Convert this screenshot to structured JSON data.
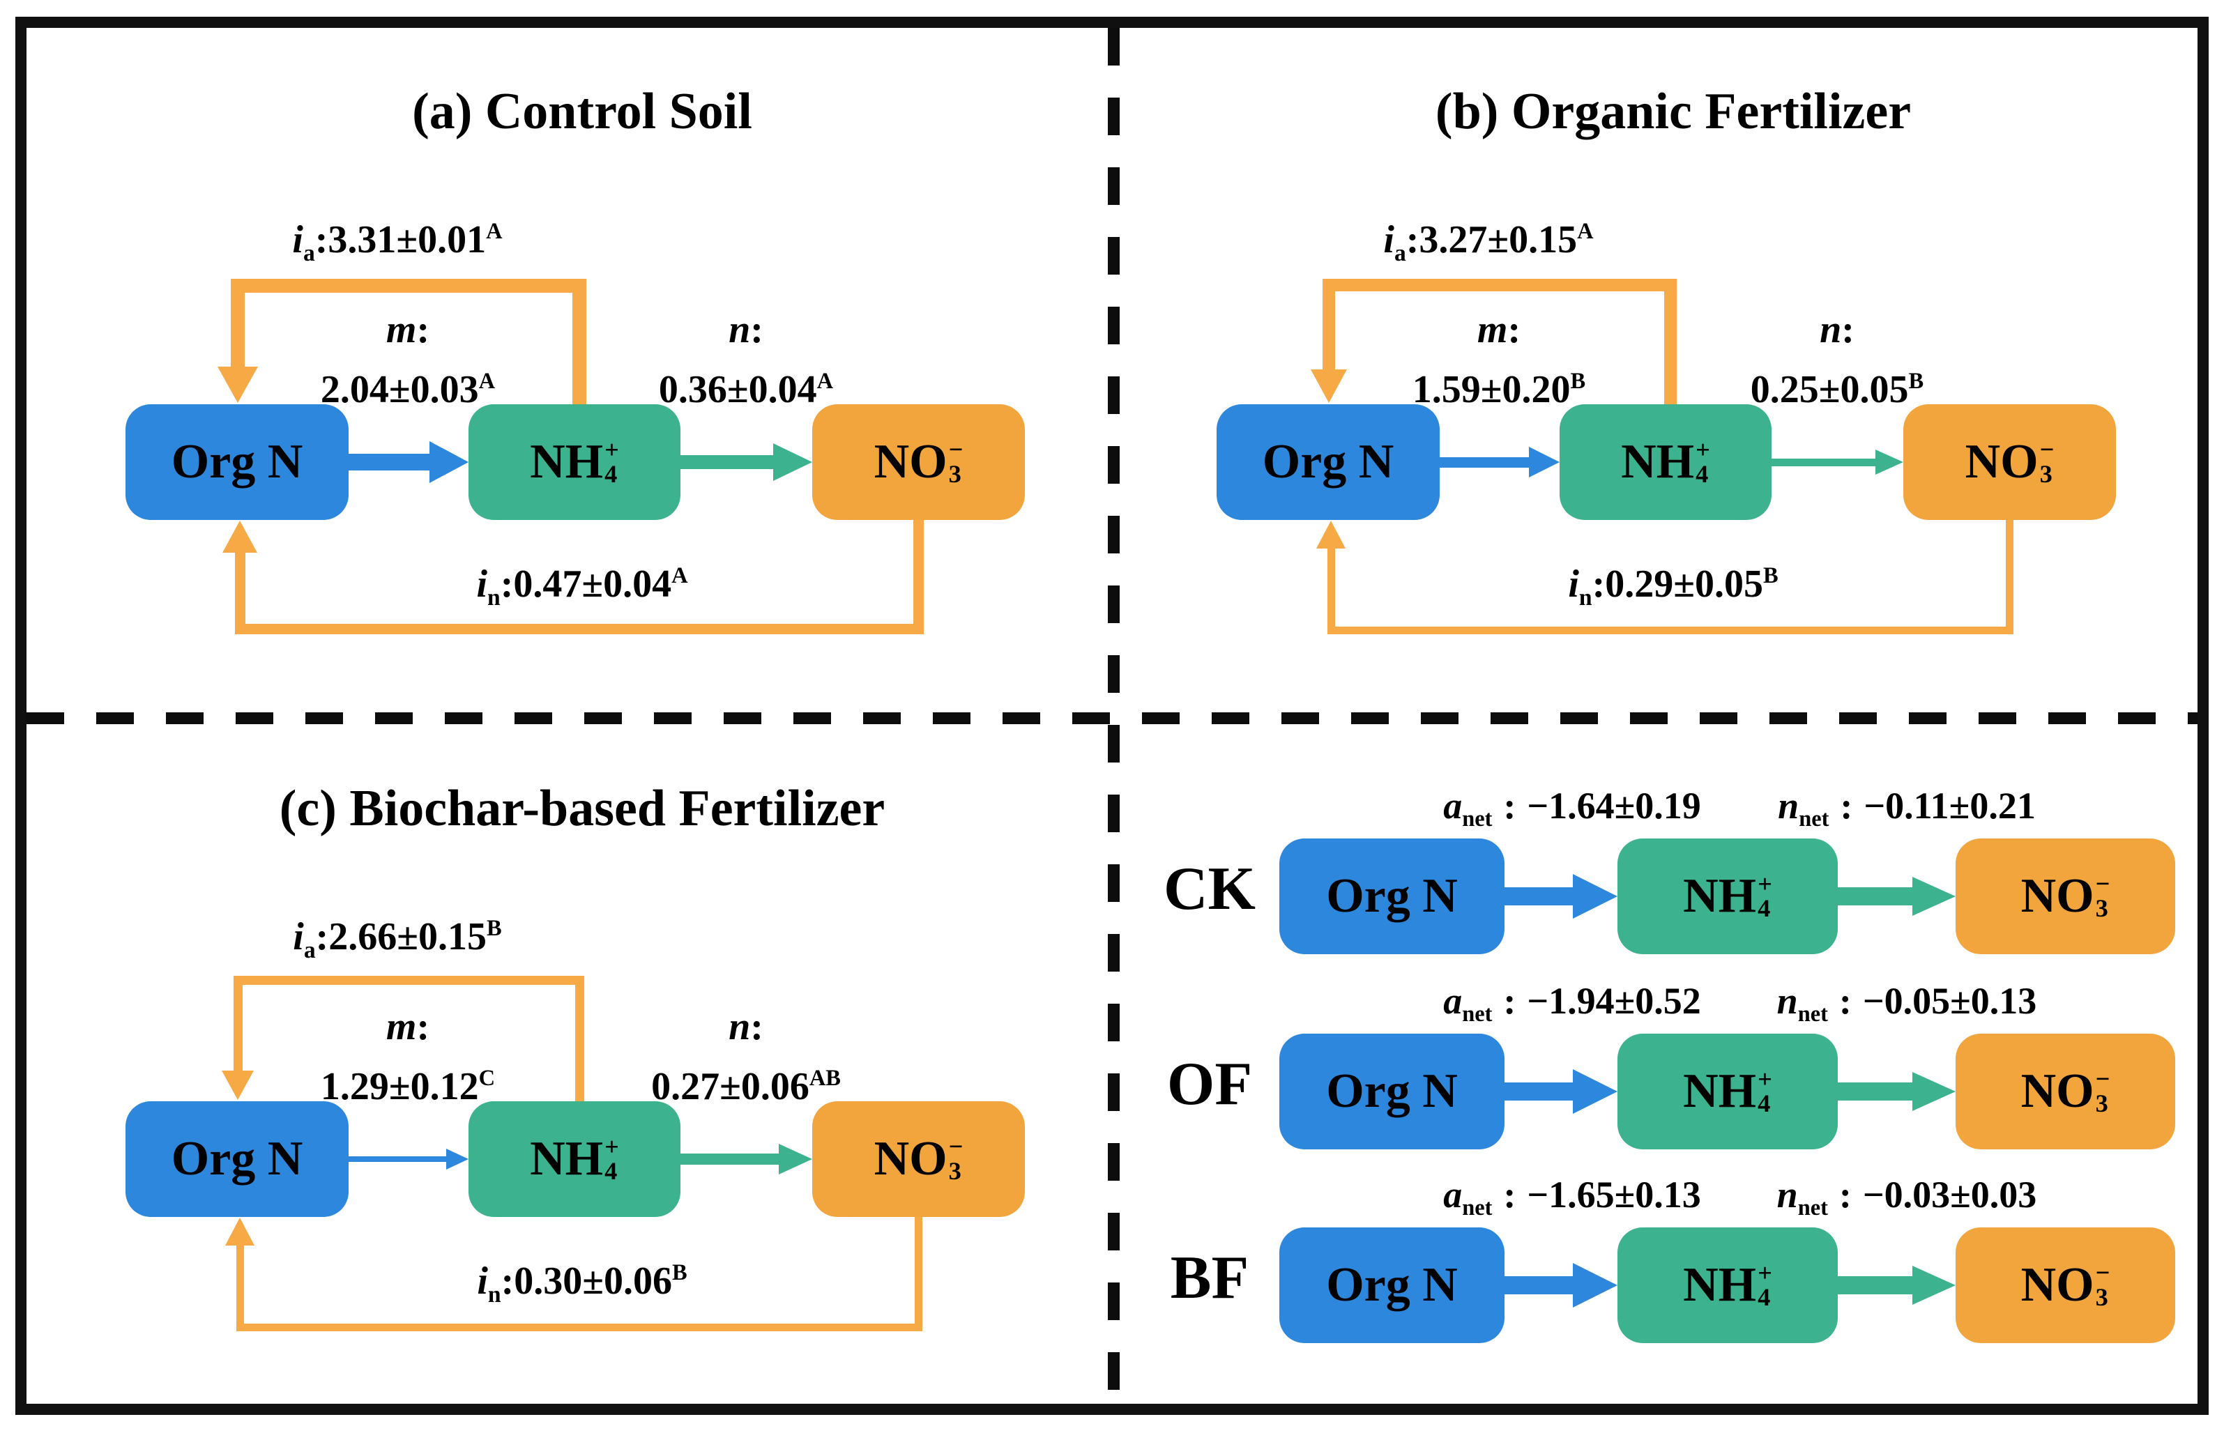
{
  "pools": {
    "org_n": "Org N",
    "nh4": {
      "base": "NH",
      "sub": "4",
      "sup": "+"
    },
    "no3": {
      "base": "NO",
      "sub": "3",
      "sup": "−"
    }
  },
  "colors": {
    "org_n_box": "#2c87dd",
    "nh4_box": "#3cb28e",
    "no3_box": "#f2a53d",
    "mineralization_arrow": "#2c87dd",
    "nitrification_arrow": "#3cb28e",
    "immobilization_arrow": "#f6a945",
    "text": "#000000",
    "frame": "#101010"
  },
  "panels": [
    {
      "title": "(a) Control Soil",
      "ia": {
        "sym": "i",
        "sub": "a",
        "colon": ":",
        "value": "3.31±0.01",
        "sup": "A"
      },
      "m": {
        "sym": "m",
        "colon": ":",
        "value": "2.04±0.03",
        "sup": "A"
      },
      "n": {
        "sym": "n",
        "colon": ":",
        "value": "0.36±0.04",
        "sup": "A"
      },
      "inl": {
        "sym": "i",
        "sub": "n",
        "colon": ":",
        "value": "0.47±0.04",
        "sup": "A"
      }
    },
    {
      "title": "(b) Organic Fertilizer",
      "ia": {
        "sym": "i",
        "sub": "a",
        "colon": ":",
        "value": "3.27±0.15",
        "sup": "A"
      },
      "m": {
        "sym": "m",
        "colon": ":",
        "value": "1.59±0.20",
        "sup": "B"
      },
      "n": {
        "sym": "n",
        "colon": ":",
        "value": "0.25±0.05",
        "sup": "B"
      },
      "inl": {
        "sym": "i",
        "sub": "n",
        "colon": ":",
        "value": "0.29±0.05",
        "sup": "B"
      }
    },
    {
      "title": "(c) Biochar-based Fertilizer",
      "ia": {
        "sym": "i",
        "sub": "a",
        "colon": ":",
        "value": "2.66±0.15",
        "sup": "B"
      },
      "m": {
        "sym": "m",
        "colon": ":",
        "value": "1.29±0.12",
        "sup": "C"
      },
      "n": {
        "sym": "n",
        "colon": ":",
        "value": "0.27±0.06",
        "sup": "AB"
      },
      "inl": {
        "sym": "i",
        "sub": "n",
        "colon": ":",
        "value": "0.30±0.06",
        "sup": "B"
      }
    }
  ],
  "rows": [
    {
      "label": "CK",
      "anet": {
        "sym": "a",
        "sub": "net",
        "colon": ":",
        "value": "−1.64±0.19"
      },
      "nnet": {
        "sym": "n",
        "sub": "net",
        "colon": ":",
        "value": "−0.11±0.21"
      }
    },
    {
      "label": "OF",
      "anet": {
        "sym": "a",
        "sub": "net",
        "colon": ":",
        "value": "−1.94±0.52"
      },
      "nnet": {
        "sym": "n",
        "sub": "net",
        "colon": ":",
        "value": "−0.05±0.13"
      }
    },
    {
      "label": "BF",
      "anet": {
        "sym": "a",
        "sub": "net",
        "colon": ":",
        "value": "−1.65±0.13"
      },
      "nnet": {
        "sym": "n",
        "sub": "net",
        "colon": ":",
        "value": "−0.03±0.03"
      }
    }
  ]
}
